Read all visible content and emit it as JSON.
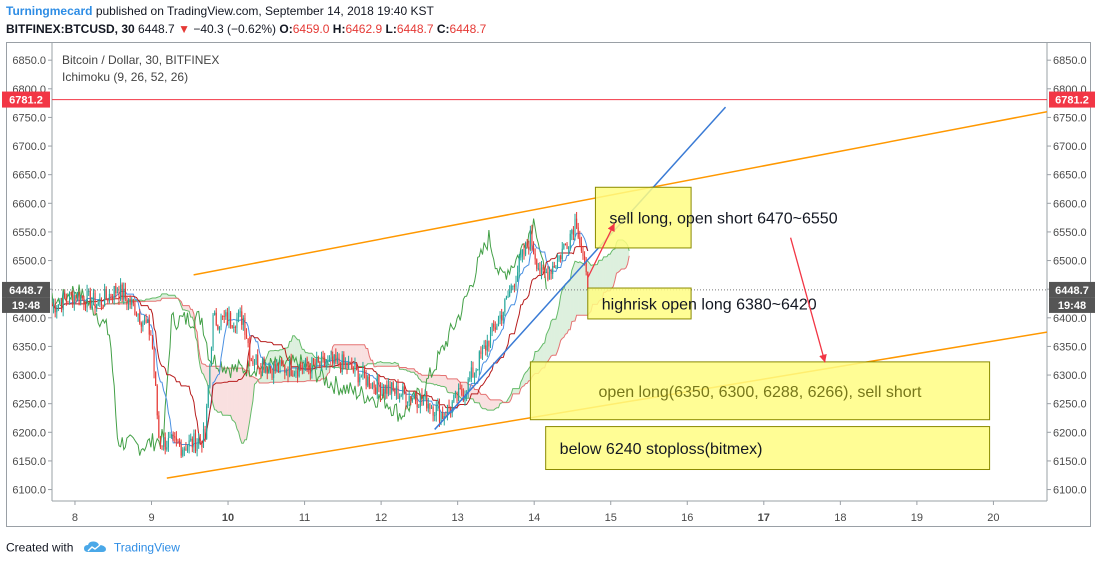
{
  "header": {
    "author": "Turningmecard",
    "published_text": "published on TradingView.com, September 14, 2018 19:40 KST",
    "symbol": "BITFINEX:BTCUSD, 30",
    "last": "6448.7",
    "change": "−40.3 (−0.62%)",
    "o_label": "O:",
    "o_value": "6459.0",
    "h_label": "H:",
    "h_value": "6462.9",
    "l_label": "L:",
    "l_value": "6448.7",
    "c_label": "C:",
    "c_value": "6448.7"
  },
  "legend": {
    "title": "Bitcoin / Dollar, 30, BITFINEX",
    "indicator": "Ichimoku (9, 26, 52, 26)"
  },
  "footer": {
    "created_with": "Created with",
    "brand": "TradingView"
  },
  "colors": {
    "up": "#26a69a",
    "down": "#e53935",
    "channel": "#ff9800",
    "trend": "#3a7bd5",
    "resistance": "#f23645",
    "note_fill": "#fffd82",
    "note_border": "#8a8a00",
    "conversion": "#4a90e2",
    "base": "#b71c1c",
    "lagging": "#43a047",
    "span_a": "#66bb6a",
    "span_b": "#e57373"
  },
  "chart_data": {
    "type": "candlestick",
    "symbol": "BITFINEX:BTCUSD",
    "interval": "30",
    "x_axis": {
      "unit": "day (September 2018)",
      "range": [
        7.7,
        20.7
      ],
      "ticks": [
        {
          "value": 8,
          "label": "8",
          "bold": false
        },
        {
          "value": 9,
          "label": "9",
          "bold": false
        },
        {
          "value": 10,
          "label": "10",
          "bold": true
        },
        {
          "value": 11,
          "label": "11",
          "bold": false
        },
        {
          "value": 12,
          "label": "12",
          "bold": false
        },
        {
          "value": 13,
          "label": "13",
          "bold": false
        },
        {
          "value": 14,
          "label": "14",
          "bold": false
        },
        {
          "value": 15,
          "label": "15",
          "bold": false
        },
        {
          "value": 16,
          "label": "16",
          "bold": false
        },
        {
          "value": 17,
          "label": "17",
          "bold": true
        },
        {
          "value": 18,
          "label": "18",
          "bold": false
        },
        {
          "value": 19,
          "label": "19",
          "bold": false
        },
        {
          "value": 20,
          "label": "20",
          "bold": false
        }
      ]
    },
    "y_axis": {
      "range": [
        6080,
        6880
      ],
      "ticks": [
        "6100.0",
        "6150.0",
        "6200.0",
        "6250.0",
        "6300.0",
        "6350.0",
        "6400.0",
        "6450.0",
        "6500.0",
        "6550.0",
        "6600.0",
        "6650.0",
        "6700.0",
        "6750.0",
        "6800.0",
        "6850.0"
      ]
    },
    "price_anchors": [
      {
        "day": 7.7,
        "price": 6420
      },
      {
        "day": 8.0,
        "price": 6440
      },
      {
        "day": 8.3,
        "price": 6425
      },
      {
        "day": 8.55,
        "price": 6450
      },
      {
        "day": 8.8,
        "price": 6415
      },
      {
        "day": 9.0,
        "price": 6370
      },
      {
        "day": 9.1,
        "price": 6185
      },
      {
        "day": 9.4,
        "price": 6175
      },
      {
        "day": 9.7,
        "price": 6190
      },
      {
        "day": 9.8,
        "price": 6395
      },
      {
        "day": 10.2,
        "price": 6400
      },
      {
        "day": 10.3,
        "price": 6330
      },
      {
        "day": 10.6,
        "price": 6310
      },
      {
        "day": 11.0,
        "price": 6315
      },
      {
        "day": 11.5,
        "price": 6320
      },
      {
        "day": 11.9,
        "price": 6285
      },
      {
        "day": 12.2,
        "price": 6270
      },
      {
        "day": 12.6,
        "price": 6255
      },
      {
        "day": 12.8,
        "price": 6230
      },
      {
        "day": 13.1,
        "price": 6275
      },
      {
        "day": 13.4,
        "price": 6360
      },
      {
        "day": 13.6,
        "price": 6415
      },
      {
        "day": 13.8,
        "price": 6490
      },
      {
        "day": 13.95,
        "price": 6540
      },
      {
        "day": 14.1,
        "price": 6470
      },
      {
        "day": 14.3,
        "price": 6500
      },
      {
        "day": 14.45,
        "price": 6540
      },
      {
        "day": 14.55,
        "price": 6575
      },
      {
        "day": 14.7,
        "price": 6450
      }
    ],
    "price_line": {
      "value": 6448.7,
      "label": "6448.7",
      "time_label": "19:48"
    },
    "resistance_line": {
      "value": 6781.2,
      "label": "6781.2"
    },
    "drawings": {
      "upper_channel": {
        "from": {
          "day": 9.55,
          "price": 6475
        },
        "to": {
          "day": 20.7,
          "price": 6760
        }
      },
      "lower_channel": {
        "from": {
          "day": 9.2,
          "price": 6120
        },
        "to": {
          "day": 20.7,
          "price": 6375
        }
      },
      "trend_line": {
        "from": {
          "day": 12.7,
          "price": 6205
        },
        "to": {
          "day": 16.5,
          "price": 6768
        }
      }
    },
    "annotations": [
      {
        "text": "sell long, open short 6470~6550",
        "day_from": 14.8,
        "day_to": 16.05,
        "price_top": 6628,
        "price_bottom": 6522,
        "align": "left",
        "text_color": "#131722"
      },
      {
        "text": "highrisk open long 6380~6420",
        "day_from": 14.7,
        "day_to": 16.05,
        "price_top": 6452,
        "price_bottom": 6398,
        "align": "left",
        "text_color": "#131722"
      },
      {
        "text": "open long(6350, 6300, 6288, 6266), sell short",
        "day_from": 13.95,
        "day_to": 19.95,
        "price_top": 6323,
        "price_bottom": 6222,
        "align": "center",
        "text_color": "#77771a"
      },
      {
        "text": "below 6240 stoploss(bitmex)",
        "day_from": 14.15,
        "day_to": 19.95,
        "price_top": 6210,
        "price_bottom": 6135,
        "align": "left",
        "text_color": "#131722"
      }
    ],
    "arrows": [
      {
        "from": {
          "day": 14.7,
          "price": 6470
        },
        "to": {
          "day": 15.05,
          "price": 6565
        }
      },
      {
        "from": {
          "day": 17.35,
          "price": 6540
        },
        "to": {
          "day": 17.8,
          "price": 6322
        }
      }
    ]
  }
}
